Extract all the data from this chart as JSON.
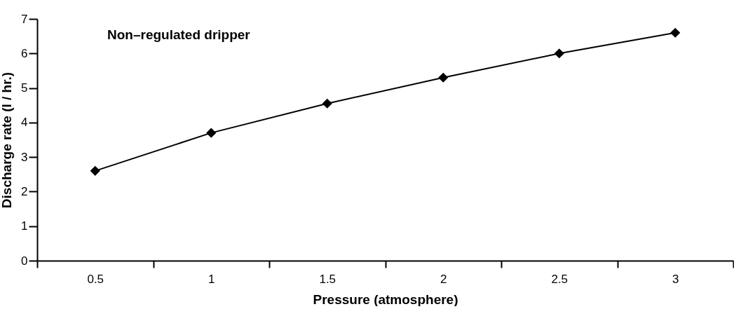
{
  "chart_data": {
    "type": "line",
    "xlabel": "Pressure (atmosphere)",
    "ylabel": "Discharge rate (l / hr.)",
    "annotations": [
      "Non–regulated dripper"
    ],
    "categories": [
      "0.5",
      "1",
      "1.5",
      "2",
      "2.5",
      "3"
    ],
    "series": [
      {
        "color": "#000000",
        "values": [
          2.6,
          3.7,
          4.55,
          5.3,
          6.0,
          6.6
        ]
      }
    ],
    "ylim": [
      0,
      7
    ],
    "yticks": [
      0,
      1,
      2,
      3,
      4,
      5,
      6,
      7
    ],
    "grid": false,
    "marker": "diamond",
    "line_style": "solid"
  }
}
